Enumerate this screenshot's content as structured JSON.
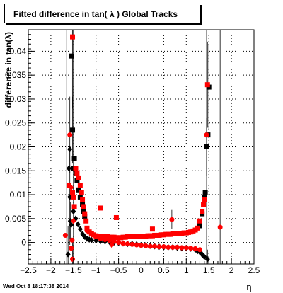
{
  "chart_data": {
    "type": "scatter",
    "title": "Fitted difference in tan( λ )  Global Tracks",
    "xlabel": "η",
    "ylabel": "difference in tan(λ)",
    "xlim": [
      -2.5,
      2.5
    ],
    "ylim": [
      -0.0045,
      0.0445
    ],
    "x_ticks": [
      -2.5,
      -2,
      -1.5,
      -1,
      -0.5,
      0,
      0.5,
      1,
      1.5,
      2,
      2.5
    ],
    "x_tick_labels": [
      "−2.5",
      "−2",
      "−1.5",
      "−1",
      "−0.5",
      "0",
      "0.5",
      "1",
      "1.5",
      "2",
      "2.5"
    ],
    "y_ticks": [
      0,
      0.005,
      0.01,
      0.015,
      0.02,
      0.025,
      0.03,
      0.035,
      0.04
    ],
    "y_tick_labels": [
      "0",
      "0.005",
      "0.01",
      "0.015",
      "0.02",
      "0.025",
      "0.03",
      "0.035",
      "0.04"
    ],
    "grid": true,
    "legend": "none",
    "series": [
      {
        "color": "#000000",
        "markers": [
          {
            "x": -1.62,
            "y": -0.0025,
            "shape": "diamond",
            "err": 0.006
          },
          {
            "x": -1.55,
            "y": 0.039,
            "shape": "square",
            "err": 0.018
          },
          {
            "x": -1.58,
            "y": 0.0095,
            "shape": "diamond",
            "err": 0.01
          },
          {
            "x": -1.57,
            "y": 0.0045,
            "shape": "diamond",
            "err": 0.004
          },
          {
            "x": -1.55,
            "y": 0.0037,
            "shape": "diamond"
          },
          {
            "x": -1.6,
            "y": 0.0155,
            "shape": "diamond"
          },
          {
            "x": -1.58,
            "y": 0.0195,
            "shape": "diamond"
          },
          {
            "x": -1.52,
            "y": 0.0235,
            "shape": "square",
            "err": 0.007
          },
          {
            "x": -1.48,
            "y": 0.0175,
            "shape": "square"
          },
          {
            "x": -1.5,
            "y": 0.0155,
            "shape": "square"
          },
          {
            "x": -1.45,
            "y": 0.0145,
            "shape": "square"
          },
          {
            "x": -1.42,
            "y": 0.013,
            "shape": "square"
          },
          {
            "x": -1.38,
            "y": 0.011,
            "shape": "square"
          },
          {
            "x": -1.35,
            "y": 0.0095,
            "shape": "square"
          },
          {
            "x": -1.3,
            "y": 0.008,
            "shape": "square"
          },
          {
            "x": -1.28,
            "y": 0.0065,
            "shape": "square"
          },
          {
            "x": -1.25,
            "y": 0.0055,
            "shape": "square"
          },
          {
            "x": -1.5,
            "y": 0.0065,
            "shape": "diamond"
          },
          {
            "x": -1.45,
            "y": 0.005,
            "shape": "diamond"
          },
          {
            "x": -1.4,
            "y": 0.0038,
            "shape": "diamond"
          },
          {
            "x": -1.35,
            "y": 0.0028,
            "shape": "diamond"
          },
          {
            "x": -1.3,
            "y": 0.0018,
            "shape": "diamond"
          },
          {
            "x": -1.25,
            "y": 0.0012,
            "shape": "diamond"
          },
          {
            "x": -1.2,
            "y": 0.0008,
            "shape": "diamond"
          },
          {
            "x": -1.15,
            "y": 0.0006,
            "shape": "diamond"
          },
          {
            "x": -1.1,
            "y": 0.0005,
            "shape": "diamond"
          },
          {
            "x": -1.0,
            "y": 0.0004,
            "shape": "diamond"
          },
          {
            "x": -0.9,
            "y": 0.0003,
            "shape": "diamond"
          },
          {
            "x": -0.8,
            "y": 0.0002,
            "shape": "diamond"
          },
          {
            "x": -0.7,
            "y": 0.0001,
            "shape": "diamond"
          },
          {
            "x": -0.6,
            "y": 0.0,
            "shape": "diamond"
          },
          {
            "x": -0.5,
            "y": -0.0001,
            "shape": "diamond"
          },
          {
            "x": -0.4,
            "y": -0.0002,
            "shape": "diamond"
          },
          {
            "x": -0.3,
            "y": -0.0003,
            "shape": "diamond"
          },
          {
            "x": -0.2,
            "y": -0.0003,
            "shape": "diamond"
          },
          {
            "x": -0.1,
            "y": -0.0004,
            "shape": "diamond"
          },
          {
            "x": 0.0,
            "y": -0.0005,
            "shape": "diamond"
          },
          {
            "x": 0.1,
            "y": -0.0006,
            "shape": "diamond"
          },
          {
            "x": 0.2,
            "y": -0.0007,
            "shape": "diamond"
          },
          {
            "x": 0.3,
            "y": -0.0008,
            "shape": "diamond"
          },
          {
            "x": 0.4,
            "y": -0.0009,
            "shape": "diamond"
          },
          {
            "x": 0.5,
            "y": -0.001,
            "shape": "diamond"
          },
          {
            "x": 0.6,
            "y": -0.001,
            "shape": "diamond"
          },
          {
            "x": 0.7,
            "y": -0.001,
            "shape": "diamond"
          },
          {
            "x": 0.8,
            "y": -0.0011,
            "shape": "diamond"
          },
          {
            "x": 0.9,
            "y": -0.0012,
            "shape": "diamond"
          },
          {
            "x": 1.0,
            "y": -0.0012,
            "shape": "diamond"
          },
          {
            "x": 1.1,
            "y": -0.0013,
            "shape": "diamond"
          },
          {
            "x": 1.2,
            "y": -0.0015,
            "shape": "diamond"
          },
          {
            "x": 1.25,
            "y": -0.0018,
            "shape": "diamond"
          },
          {
            "x": 1.3,
            "y": -0.002,
            "shape": "diamond"
          },
          {
            "x": 1.35,
            "y": -0.0025,
            "shape": "diamond"
          },
          {
            "x": 1.4,
            "y": -0.003,
            "shape": "diamond"
          },
          {
            "x": 1.3,
            "y": 0.0035,
            "shape": "square"
          },
          {
            "x": 1.35,
            "y": 0.006,
            "shape": "square"
          },
          {
            "x": 1.4,
            "y": 0.0095,
            "shape": "square"
          },
          {
            "x": 1.42,
            "y": 0.0105,
            "shape": "square"
          },
          {
            "x": 1.45,
            "y": 0.02,
            "shape": "square",
            "err": 0.006
          },
          {
            "x": 1.48,
            "y": 0.0225,
            "shape": "square"
          },
          {
            "x": 1.5,
            "y": 0.0325,
            "shape": "square",
            "err": 0.009
          },
          {
            "x": 1.47,
            "y": -0.0035,
            "shape": "diamond",
            "err": 0.002
          }
        ]
      },
      {
        "color": "#ff0000",
        "markers": [
          {
            "x": -1.58,
            "y": 0.0225,
            "shape": "circle",
            "err": 0.008
          },
          {
            "x": -1.52,
            "y": 0.043,
            "shape": "square",
            "err": 0.015
          },
          {
            "x": -1.6,
            "y": 0.012,
            "shape": "square"
          },
          {
            "x": -1.55,
            "y": 0.0115,
            "shape": "diamond"
          },
          {
            "x": -1.52,
            "y": 0.0105,
            "shape": "square"
          },
          {
            "x": -1.5,
            "y": 0.0095,
            "shape": "square"
          },
          {
            "x": -1.68,
            "y": 0.0015,
            "shape": "circle"
          },
          {
            "x": -1.52,
            "y": -0.0035,
            "shape": "circle",
            "err": 0.004
          },
          {
            "x": -1.55,
            "y": -0.0012,
            "shape": "circle"
          },
          {
            "x": -1.53,
            "y": 0.0005,
            "shape": "circle"
          },
          {
            "x": -1.5,
            "y": 0.0045,
            "shape": "diamond"
          },
          {
            "x": -1.48,
            "y": 0.0075,
            "shape": "square"
          },
          {
            "x": -1.45,
            "y": 0.0155,
            "shape": "square"
          },
          {
            "x": -1.42,
            "y": 0.0145,
            "shape": "square"
          },
          {
            "x": -1.38,
            "y": 0.0135,
            "shape": "square"
          },
          {
            "x": -1.35,
            "y": 0.012,
            "shape": "square"
          },
          {
            "x": -1.32,
            "y": 0.0105,
            "shape": "square"
          },
          {
            "x": -1.3,
            "y": 0.009,
            "shape": "square"
          },
          {
            "x": -1.28,
            "y": 0.0075,
            "shape": "square"
          },
          {
            "x": -1.25,
            "y": 0.006,
            "shape": "square"
          },
          {
            "x": -1.22,
            "y": 0.0045,
            "shape": "square"
          },
          {
            "x": -1.2,
            "y": 0.003,
            "shape": "square"
          },
          {
            "x": -1.15,
            "y": 0.0022,
            "shape": "square"
          },
          {
            "x": -1.1,
            "y": 0.0018,
            "shape": "square"
          },
          {
            "x": -1.05,
            "y": 0.0016,
            "shape": "square"
          },
          {
            "x": -1.0,
            "y": 0.0014,
            "shape": "square"
          },
          {
            "x": -0.95,
            "y": 0.0013,
            "shape": "square"
          },
          {
            "x": -0.9,
            "y": 0.0013,
            "shape": "square"
          },
          {
            "x": -0.85,
            "y": 0.0012,
            "shape": "square"
          },
          {
            "x": -0.8,
            "y": 0.0012,
            "shape": "square"
          },
          {
            "x": -0.75,
            "y": 0.0012,
            "shape": "square"
          },
          {
            "x": -0.7,
            "y": 0.0011,
            "shape": "square"
          },
          {
            "x": -0.65,
            "y": 0.0011,
            "shape": "square"
          },
          {
            "x": -0.6,
            "y": 0.0011,
            "shape": "square"
          },
          {
            "x": -0.55,
            "y": 0.001,
            "shape": "square"
          },
          {
            "x": -0.5,
            "y": 0.001,
            "shape": "square"
          },
          {
            "x": -0.45,
            "y": 0.001,
            "shape": "square"
          },
          {
            "x": -0.4,
            "y": 0.0011,
            "shape": "square"
          },
          {
            "x": -0.35,
            "y": 0.0011,
            "shape": "square"
          },
          {
            "x": -0.3,
            "y": 0.0012,
            "shape": "square"
          },
          {
            "x": -0.25,
            "y": 0.0012,
            "shape": "square"
          },
          {
            "x": -0.2,
            "y": 0.0012,
            "shape": "square"
          },
          {
            "x": -0.15,
            "y": 0.0012,
            "shape": "square"
          },
          {
            "x": -0.1,
            "y": 0.0013,
            "shape": "square"
          },
          {
            "x": -0.05,
            "y": 0.0013,
            "shape": "square"
          },
          {
            "x": 0.0,
            "y": 0.0013,
            "shape": "square"
          },
          {
            "x": 0.05,
            "y": 0.0013,
            "shape": "square"
          },
          {
            "x": 0.1,
            "y": 0.0013,
            "shape": "square"
          },
          {
            "x": 0.15,
            "y": 0.0014,
            "shape": "square"
          },
          {
            "x": 0.2,
            "y": 0.0014,
            "shape": "square"
          },
          {
            "x": 0.25,
            "y": 0.0014,
            "shape": "square"
          },
          {
            "x": 0.3,
            "y": 0.0015,
            "shape": "square"
          },
          {
            "x": 0.35,
            "y": 0.0015,
            "shape": "square"
          },
          {
            "x": 0.4,
            "y": 0.0015,
            "shape": "square"
          },
          {
            "x": 0.45,
            "y": 0.0016,
            "shape": "square"
          },
          {
            "x": 0.5,
            "y": 0.0016,
            "shape": "square"
          },
          {
            "x": 0.55,
            "y": 0.0017,
            "shape": "square"
          },
          {
            "x": 0.6,
            "y": 0.0017,
            "shape": "square"
          },
          {
            "x": 0.65,
            "y": 0.0017,
            "shape": "square"
          },
          {
            "x": 0.7,
            "y": 0.0018,
            "shape": "square"
          },
          {
            "x": 0.75,
            "y": 0.0018,
            "shape": "square"
          },
          {
            "x": 0.8,
            "y": 0.0018,
            "shape": "square"
          },
          {
            "x": 0.85,
            "y": 0.0019,
            "shape": "square"
          },
          {
            "x": 0.9,
            "y": 0.0019,
            "shape": "square"
          },
          {
            "x": 0.95,
            "y": 0.002,
            "shape": "square"
          },
          {
            "x": 1.0,
            "y": 0.002,
            "shape": "square"
          },
          {
            "x": 1.05,
            "y": 0.0021,
            "shape": "square"
          },
          {
            "x": 1.1,
            "y": 0.0022,
            "shape": "square"
          },
          {
            "x": 1.15,
            "y": 0.0024,
            "shape": "square"
          },
          {
            "x": 1.2,
            "y": 0.0026,
            "shape": "square"
          },
          {
            "x": 1.25,
            "y": 0.003,
            "shape": "square"
          },
          {
            "x": 1.3,
            "y": 0.0045,
            "shape": "square"
          },
          {
            "x": 1.35,
            "y": 0.0065,
            "shape": "square"
          },
          {
            "x": 1.38,
            "y": 0.008,
            "shape": "square"
          },
          {
            "x": 1.4,
            "y": 0.009,
            "shape": "square"
          },
          {
            "x": 1.45,
            "y": 0.0225,
            "shape": "circle"
          },
          {
            "x": 1.47,
            "y": 0.033,
            "shape": "square",
            "err": 0.009
          },
          {
            "x": 1.75,
            "y": 0.0032,
            "shape": "circle"
          },
          {
            "x": -0.9,
            "y": 0.0072,
            "shape": "square"
          },
          {
            "x": -0.55,
            "y": 0.0052,
            "shape": "square"
          },
          {
            "x": 0.25,
            "y": 0.0028,
            "shape": "square"
          },
          {
            "x": 0.68,
            "y": 0.0048,
            "shape": "circle",
            "err": 0.002
          },
          {
            "x": -1.2,
            "y": 0.0025,
            "shape": "circle"
          },
          {
            "x": -1.1,
            "y": 0.0018,
            "shape": "circle"
          },
          {
            "x": -1.0,
            "y": 0.0012,
            "shape": "circle"
          },
          {
            "x": -0.9,
            "y": 0.0008,
            "shape": "circle"
          },
          {
            "x": -0.8,
            "y": 0.0006,
            "shape": "circle"
          },
          {
            "x": -0.7,
            "y": 0.0004,
            "shape": "circle"
          },
          {
            "x": -0.6,
            "y": 0.0002,
            "shape": "circle"
          },
          {
            "x": -0.5,
            "y": 0.0,
            "shape": "circle"
          },
          {
            "x": -0.4,
            "y": -0.0002,
            "shape": "circle"
          },
          {
            "x": -0.3,
            "y": -0.0003,
            "shape": "circle"
          },
          {
            "x": -0.2,
            "y": -0.0004,
            "shape": "circle"
          },
          {
            "x": -0.1,
            "y": -0.0005,
            "shape": "circle"
          },
          {
            "x": 0.0,
            "y": -0.0006,
            "shape": "circle"
          },
          {
            "x": 0.1,
            "y": -0.0007,
            "shape": "circle"
          },
          {
            "x": 0.2,
            "y": -0.0008,
            "shape": "circle"
          },
          {
            "x": 0.3,
            "y": -0.0008,
            "shape": "circle"
          },
          {
            "x": 0.4,
            "y": -0.0009,
            "shape": "circle"
          },
          {
            "x": 0.5,
            "y": -0.0009,
            "shape": "circle"
          },
          {
            "x": 0.6,
            "y": -0.001,
            "shape": "circle"
          },
          {
            "x": 0.7,
            "y": -0.001,
            "shape": "circle"
          },
          {
            "x": 0.8,
            "y": -0.001,
            "shape": "circle"
          },
          {
            "x": 0.9,
            "y": -0.0011,
            "shape": "circle"
          },
          {
            "x": 1.0,
            "y": -0.0011,
            "shape": "circle"
          },
          {
            "x": 1.1,
            "y": -0.0012,
            "shape": "circle"
          },
          {
            "x": 1.2,
            "y": -0.0013,
            "shape": "circle"
          },
          {
            "x": 1.3,
            "y": -0.0015,
            "shape": "circle"
          },
          {
            "x": -0.65,
            "y": -0.0005,
            "shape": "diamond"
          }
        ]
      }
    ],
    "vertical_lines": [
      -1.65,
      -1.5,
      1.45,
      1.75
    ]
  },
  "footer": {
    "timestamp": "Wed Oct  8 18:17:38 2014"
  }
}
